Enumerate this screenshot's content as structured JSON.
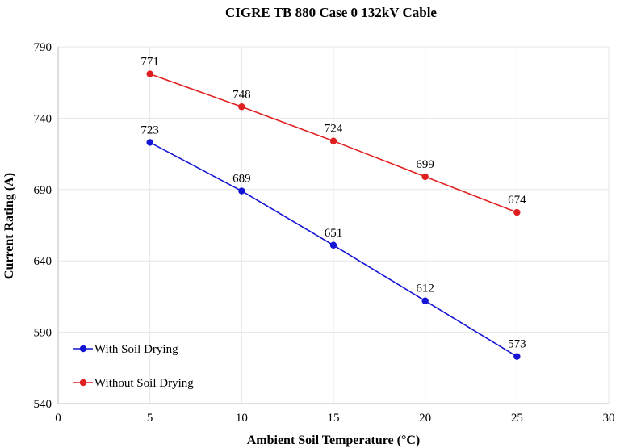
{
  "chart_data": {
    "type": "line",
    "title": "CIGRE TB 880 Case 0 132kV Cable",
    "xlabel": "Ambient Soil Temperature (°C)",
    "ylabel": "Current Rating (A)",
    "xlim": [
      0,
      30
    ],
    "ylim": [
      540,
      790
    ],
    "xticks": [
      0,
      5,
      10,
      15,
      20,
      25,
      30
    ],
    "yticks": [
      540,
      590,
      640,
      690,
      740,
      790
    ],
    "grid": true,
    "legend_position": "bottom-left",
    "x": [
      5,
      10,
      15,
      20,
      25
    ],
    "series": [
      {
        "name": "With Soil Drying",
        "color": "#1515d6",
        "values": [
          723,
          689,
          651,
          612,
          573
        ]
      },
      {
        "name": "Without Soil Drying",
        "color": "#e02020",
        "values": [
          771,
          748,
          724,
          699,
          674
        ]
      }
    ]
  }
}
